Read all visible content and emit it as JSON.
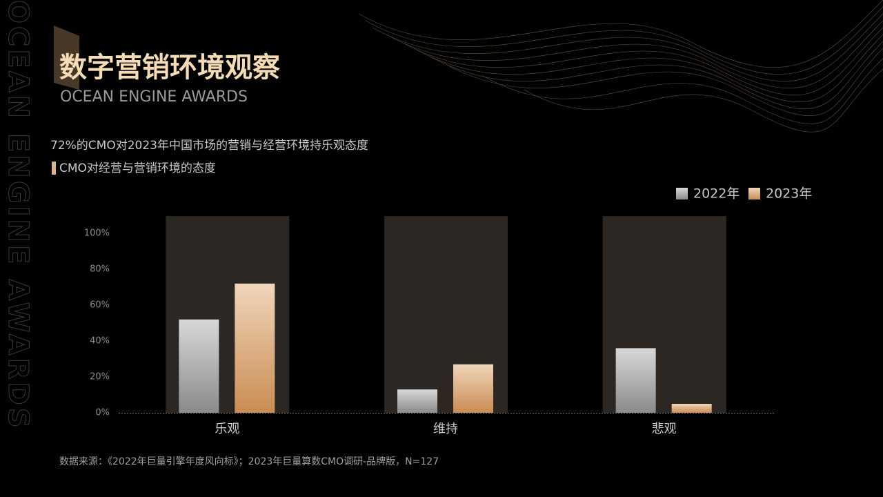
{
  "header": {
    "title": "数字营销环境观察",
    "subtitle": "OCEAN ENGINE AWARDS",
    "side_text": "OCEAN ENGINE AWARDS"
  },
  "chart_data": {
    "type": "bar",
    "subtitle": "72%的CMO对2023年中国市场的营销与经营环境持乐观态度",
    "title": "CMO对经营与营销环境的态度",
    "categories": [
      "乐观",
      "维持",
      "悲观"
    ],
    "series": [
      {
        "name": "2022年",
        "color": "#d8d8d8",
        "gradient_to": "#8a8a8a",
        "values": [
          52,
          13,
          36
        ]
      },
      {
        "name": "2023年",
        "color": "#f0d6ba",
        "gradient_to": "#c98c52",
        "values": [
          72,
          27,
          5
        ]
      }
    ],
    "ylim": [
      0,
      100
    ],
    "yticks": [
      {
        "value": 0,
        "label": "0%"
      },
      {
        "value": 20,
        "label": "20%"
      },
      {
        "value": 40,
        "label": "40%"
      },
      {
        "value": 60,
        "label": "60%"
      },
      {
        "value": 80,
        "label": "80%"
      },
      {
        "value": 100,
        "label": "100%"
      }
    ],
    "grid": false,
    "legend": "top-right"
  },
  "footer": {
    "source": "数据来源：《2022年巨量引擎年度风向标》；2023年巨量算数CMO调研-品牌版，N=127"
  }
}
